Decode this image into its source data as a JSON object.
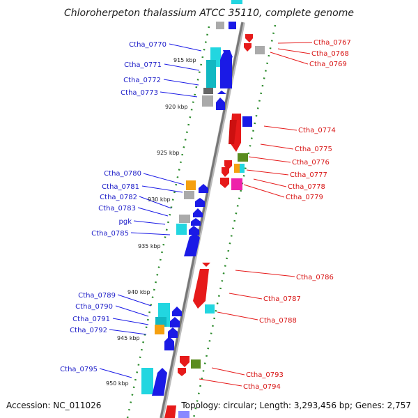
{
  "title": "Chloroherpeton thalassium ATCC 35110, complete genome",
  "accession": "Accession: NC_011026",
  "summary": "Topology: circular; Length: 3,293,456 bp; Genes: 2,757",
  "ticks": [
    "915 kbp",
    "920 kbp",
    "925 kbp",
    "930 kbp",
    "935 kbp",
    "940 kbp",
    "945 kbp",
    "950 kbp"
  ],
  "left_genes": [
    "Ctha_0770",
    "Ctha_0771",
    "Ctha_0772",
    "Ctha_0773",
    "Ctha_0780",
    "Ctha_0781",
    "Ctha_0782",
    "Ctha_0783",
    "pgk",
    "Ctha_0785",
    "Ctha_0789",
    "Ctha_0790",
    "Ctha_0791",
    "Ctha_0792",
    "Ctha_0795"
  ],
  "right_genes": [
    "Ctha_0767",
    "Ctha_0768",
    "Ctha_0769",
    "Ctha_0774",
    "Ctha_0775",
    "Ctha_0776",
    "Ctha_0777",
    "Ctha_0778",
    "Ctha_0779",
    "Ctha_0786",
    "Ctha_0787",
    "Ctha_0788",
    "Ctha_0793",
    "Ctha_0794"
  ],
  "colors": {
    "forward": "#1a1ae6",
    "reverse": "#e61a1a",
    "cyan": "#22d6e0",
    "gray": "#aaaaaa",
    "orange": "#f5a010",
    "olive": "#5a8c1e",
    "magenta": "#ee22aa",
    "ticks": "#2a8a2a",
    "backbone": "#777777"
  }
}
